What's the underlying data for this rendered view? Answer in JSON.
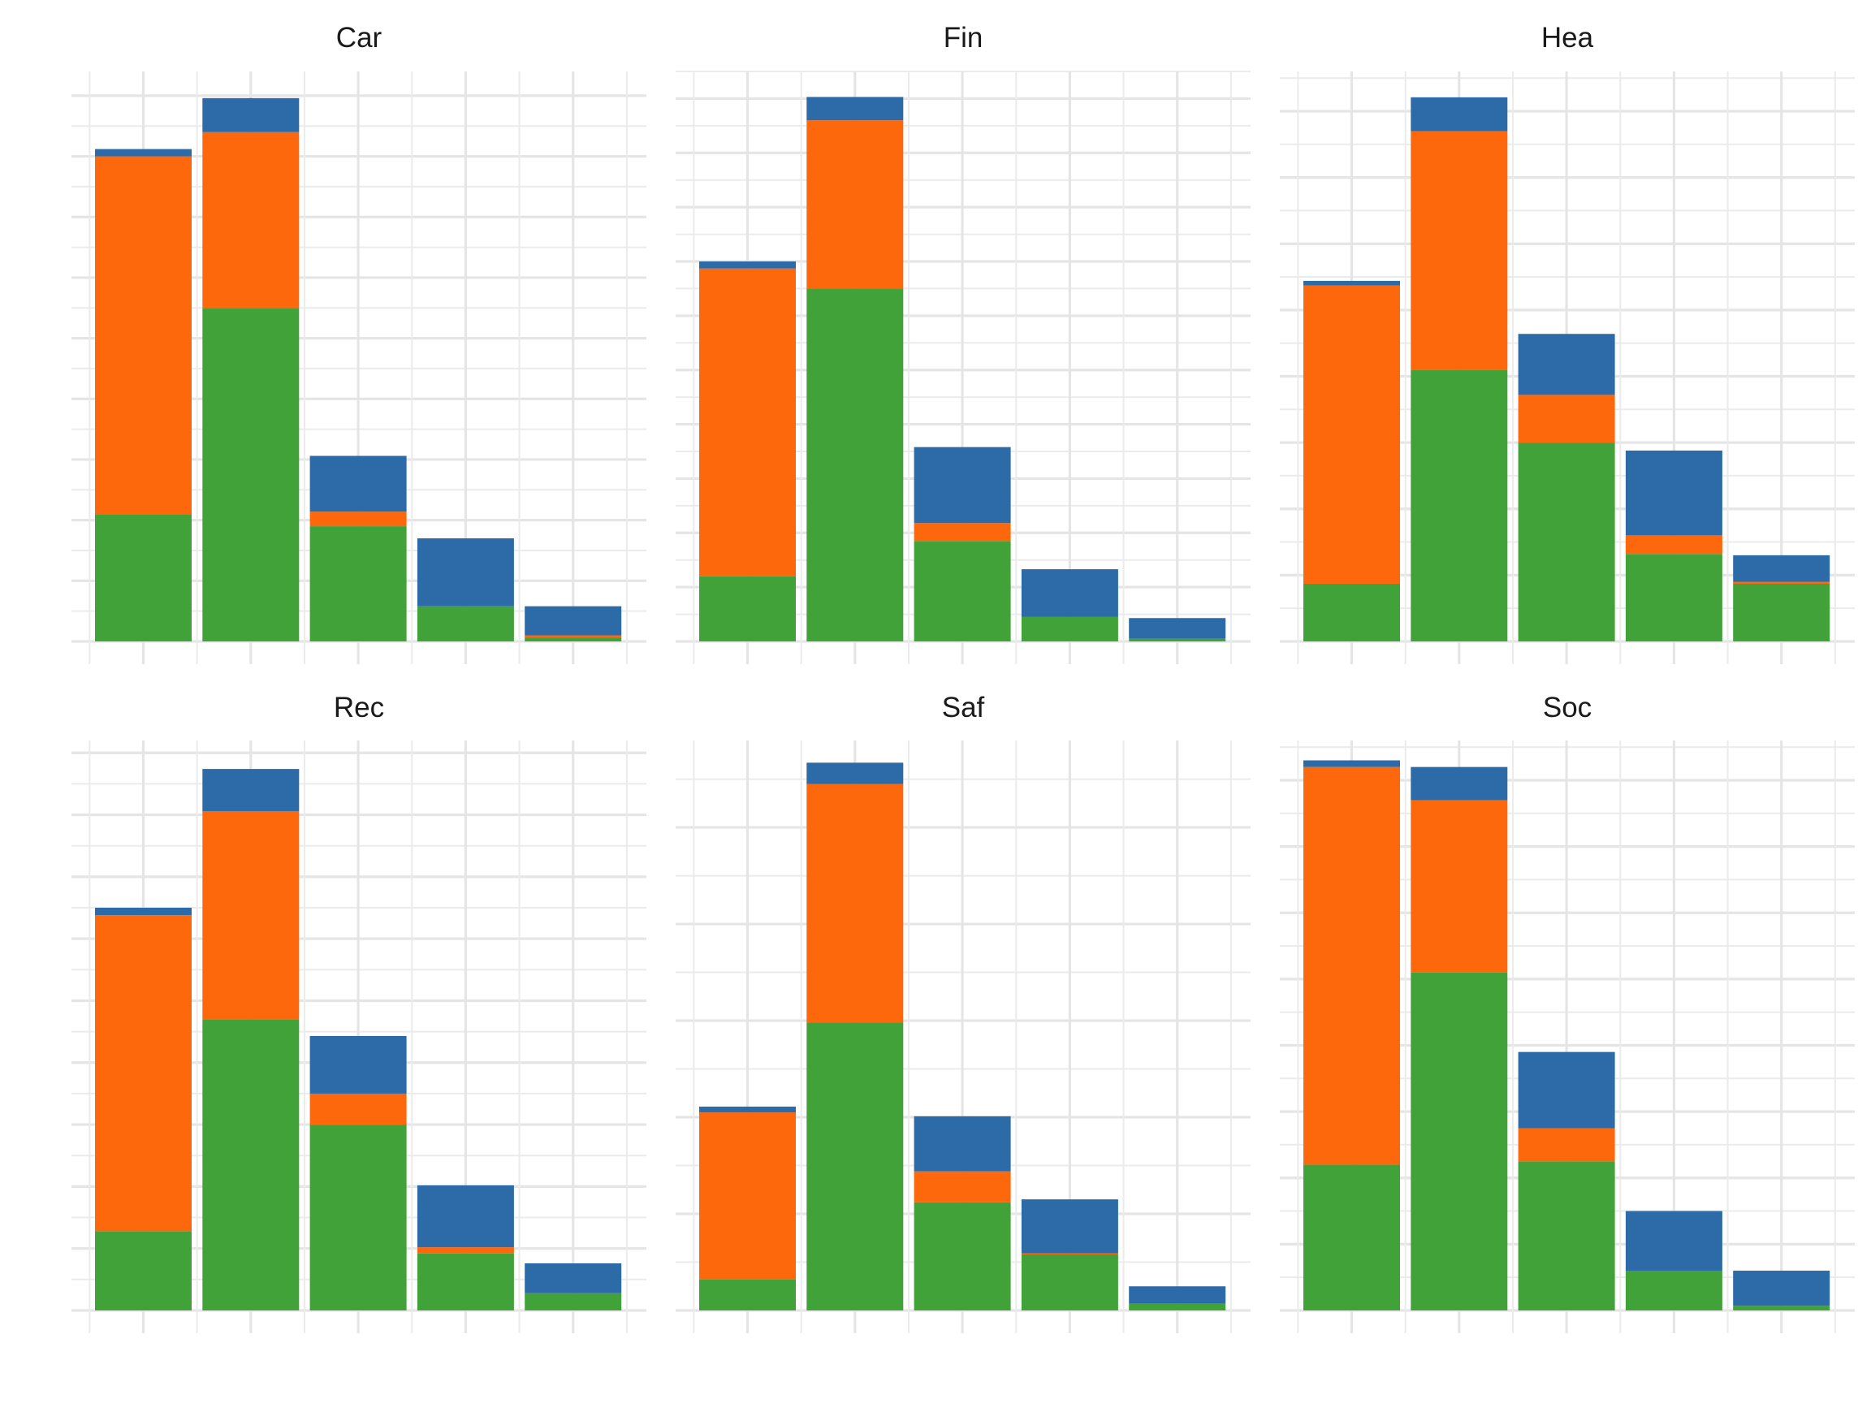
{
  "chart_data": {
    "type": "bar",
    "stacked": true,
    "layout": "facets-2x3",
    "grid": true,
    "legend": "none",
    "axis_labels_shown": false,
    "colors": {
      "green": "#41a23a",
      "orange": "#fd680c",
      "blue": "#2d6aa8",
      "grid": "#e5e5e5"
    },
    "stack_order": [
      "green",
      "orange",
      "blue"
    ],
    "facets": [
      {
        "title": "Car",
        "ymax": 9.4,
        "bars": [
          {
            "green": 2.1,
            "orange": 5.9,
            "blue": 0.12
          },
          {
            "green": 5.5,
            "orange": 2.9,
            "blue": 0.56
          },
          {
            "green": 1.9,
            "orange": 0.24,
            "blue": 0.92
          },
          {
            "green": 0.58,
            "orange": 0,
            "blue": 1.12
          },
          {
            "green": 0.06,
            "orange": 0.04,
            "blue": 0.48
          }
        ]
      },
      {
        "title": "Fin",
        "ymax": 10.5,
        "bars": [
          {
            "green": 1.2,
            "orange": 5.67,
            "blue": 0.13
          },
          {
            "green": 6.5,
            "orange": 3.1,
            "blue": 0.43
          },
          {
            "green": 1.85,
            "orange": 0.33,
            "blue": 1.4
          },
          {
            "green": 0.45,
            "orange": 0,
            "blue": 0.88
          },
          {
            "green": 0.05,
            "orange": 0,
            "blue": 0.38
          }
        ]
      },
      {
        "title": "Hea",
        "ymax": 8.6,
        "bars": [
          {
            "green": 0.87,
            "orange": 4.5,
            "blue": 0.07
          },
          {
            "green": 4.1,
            "orange": 3.6,
            "blue": 0.51
          },
          {
            "green": 3.0,
            "orange": 0.72,
            "blue": 0.92
          },
          {
            "green": 1.32,
            "orange": 0.28,
            "blue": 1.28
          },
          {
            "green": 0.87,
            "orange": 0.03,
            "blue": 0.4
          }
        ]
      },
      {
        "title": "Rec",
        "ymax": 9.2,
        "bars": [
          {
            "green": 1.28,
            "orange": 5.1,
            "blue": 0.12
          },
          {
            "green": 4.7,
            "orange": 3.36,
            "blue": 0.68
          },
          {
            "green": 3.0,
            "orange": 0.5,
            "blue": 0.93
          },
          {
            "green": 0.92,
            "orange": 0.1,
            "blue": 1.0
          },
          {
            "green": 0.28,
            "orange": 0,
            "blue": 0.48
          }
        ]
      },
      {
        "title": "Saf",
        "ymax": 5.9,
        "bars": [
          {
            "green": 0.32,
            "orange": 1.73,
            "blue": 0.06
          },
          {
            "green": 2.98,
            "orange": 2.47,
            "blue": 0.22
          },
          {
            "green": 1.12,
            "orange": 0.32,
            "blue": 0.57
          },
          {
            "green": 0.58,
            "orange": 0.01,
            "blue": 0.56
          },
          {
            "green": 0.07,
            "orange": 0,
            "blue": 0.18
          }
        ]
      },
      {
        "title": "Soc",
        "ymax": 8.6,
        "bars": [
          {
            "green": 2.2,
            "orange": 6.0,
            "blue": 0.1
          },
          {
            "green": 5.1,
            "orange": 2.6,
            "blue": 0.5
          },
          {
            "green": 2.25,
            "orange": 0.5,
            "blue": 1.15
          },
          {
            "green": 0.6,
            "orange": 0,
            "blue": 0.9
          },
          {
            "green": 0.07,
            "orange": 0,
            "blue": 0.53
          }
        ]
      }
    ]
  }
}
